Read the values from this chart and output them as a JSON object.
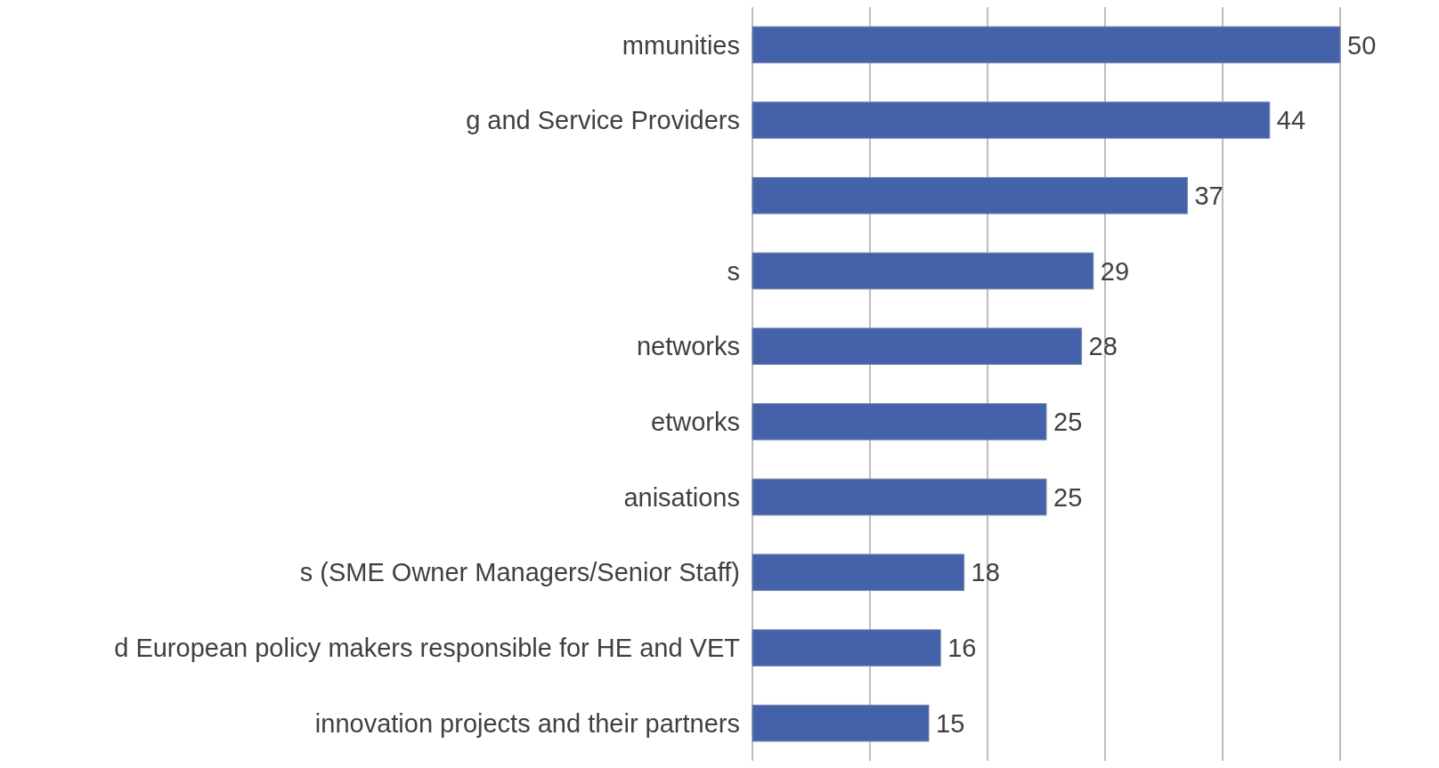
{
  "chart_data": {
    "type": "bar",
    "orientation": "horizontal",
    "categories": [
      "mmunities",
      "g and Service Providers",
      null,
      "s",
      "networks",
      "etworks",
      "anisations",
      "s (SME Owner Managers/Senior Staff)",
      "d European policy makers responsible for HE and VET",
      "innovation projects and their partners"
    ],
    "values": [
      50,
      44,
      37,
      29,
      28,
      25,
      25,
      18,
      16,
      15
    ],
    "color": "#4462aa",
    "xlim": [
      0,
      50
    ],
    "xticks": [
      {
        "value": 0,
        "label": null
      },
      {
        "value": 10,
        "label": null
      },
      {
        "value": 20,
        "label": null
      },
      {
        "value": 30,
        "label": null
      },
      {
        "value": 40,
        "label": null
      },
      {
        "value": 50,
        "label": null
      }
    ],
    "grid": "x",
    "tick_labels": "y",
    "data_labels": true
  }
}
